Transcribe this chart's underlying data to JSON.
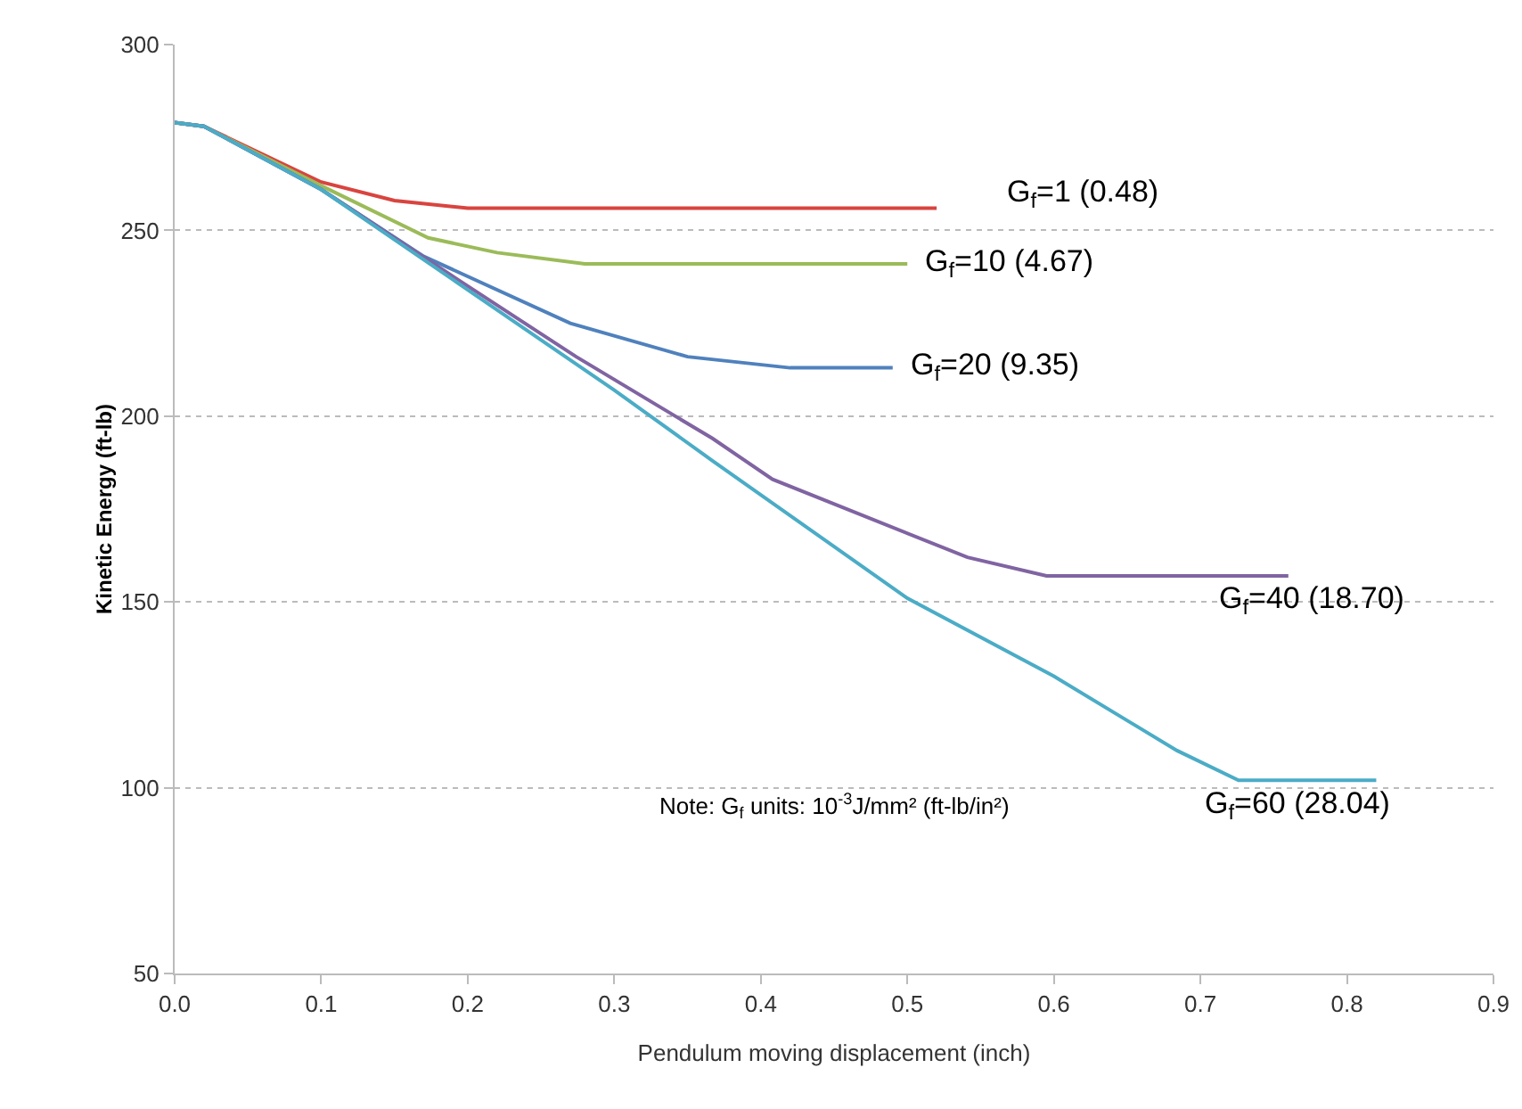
{
  "chart_data": {
    "type": "line",
    "xlabel": "Pendulum moving displacement (inch)",
    "ylabel": "Kinetic Energy (ft-lb)",
    "xlim": [
      0,
      0.9
    ],
    "xticks": [
      {
        "value": 0,
        "label": "0.0"
      },
      0.1,
      0.2,
      0.3,
      0.4,
      0.5,
      0.6,
      0.7,
      0.8,
      0.9
    ],
    "ylim": [
      50,
      300
    ],
    "yticks": [
      50,
      100,
      150,
      200,
      250,
      300
    ],
    "grid": "y",
    "legend": false,
    "marker": "none",
    "line_style": "solid",
    "series": [
      {
        "name": "G$_{f}$=1 (0.48)",
        "color": "#d9443f",
        "x": [
          0,
          0.02,
          0.1,
          0.15,
          0.2,
          0.52
        ],
        "values": [
          279,
          278,
          263,
          258,
          256,
          256
        ]
      },
      {
        "name": "G$_{f}$=10 (4.67)",
        "color": "#9bbb59",
        "x": [
          0,
          0.02,
          0.1,
          0.173,
          0.22,
          0.28,
          0.5
        ],
        "values": [
          279,
          278,
          262,
          248,
          244,
          241,
          241
        ]
      },
      {
        "name": "G$_{f}$=20 (9.35)",
        "color": "#4f81bd",
        "x": [
          0,
          0.02,
          0.1,
          0.17,
          0.27,
          0.35,
          0.42,
          0.49
        ],
        "values": [
          279,
          278,
          261,
          243,
          225,
          216,
          213,
          213
        ]
      },
      {
        "name": "G$_{f}$=40 (18.70)",
        "color": "#8064a2",
        "x": [
          0,
          0.02,
          0.1,
          0.2,
          0.274,
          0.367,
          0.408,
          0.541,
          0.595,
          0.76
        ],
        "values": [
          279,
          278,
          261,
          235,
          216,
          194,
          183,
          162,
          157,
          157
        ]
      },
      {
        "name": "G$_{f}$=60 (28.04)",
        "color": "#4bacc6",
        "x": [
          0,
          0.02,
          0.1,
          0.2,
          0.3,
          0.367,
          0.5,
          0.6,
          0.684,
          0.726,
          0.82
        ],
        "values": [
          279,
          278,
          261,
          234,
          207,
          188,
          151,
          130,
          110,
          102,
          102
        ]
      }
    ],
    "annotations": [
      "Note: G$_{f}$ units: 10$^{-3}$J/mm² (ft-lb/in²)"
    ]
  }
}
